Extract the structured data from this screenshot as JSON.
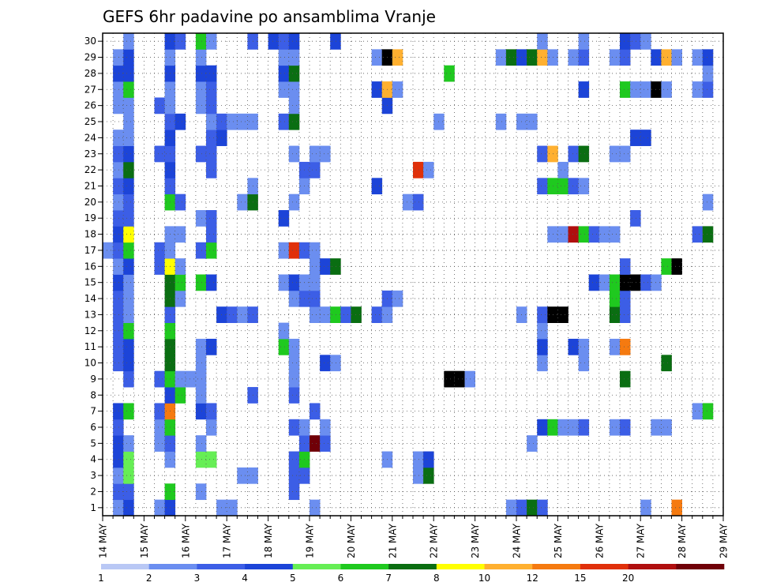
{
  "chart_data": {
    "type": "heatmap",
    "title": "GEFS 6hr padavine po ansamblima Vranje",
    "xlabel": "",
    "ylabel": "",
    "x_ticks": [
      "14 MAY",
      "15 MAY",
      "16 MAY",
      "17 MAY",
      "18 MAY",
      "19 MAY",
      "20 MAY",
      "21 MAY",
      "22 MAY",
      "23 MAY",
      "24 MAY",
      "25 MAY",
      "26 MAY",
      "27 MAY",
      "28 MAY",
      "29 MAY"
    ],
    "y_ticks": [
      "1",
      "2",
      "3",
      "4",
      "5",
      "6",
      "7",
      "8",
      "9",
      "10",
      "11",
      "12",
      "13",
      "14",
      "15",
      "16",
      "17",
      "18",
      "19",
      "20",
      "21",
      "22",
      "23",
      "24",
      "25",
      "26",
      "27",
      "28",
      "29",
      "30"
    ],
    "xlim": [
      0,
      60
    ],
    "ylim": [
      0.5,
      30.5
    ],
    "grid": true,
    "colorbar": {
      "levels": [
        1,
        2,
        3,
        4,
        5,
        6,
        7,
        8,
        10,
        12,
        15,
        20
      ],
      "labels": [
        "1",
        "2",
        "3",
        "4",
        "5",
        "6",
        "7",
        "8",
        "10",
        "12",
        "15",
        "20"
      ],
      "colors": [
        "#b9c8f5",
        "#6b8ef0",
        "#3c5ee6",
        "#1c44d8",
        "#66ee55",
        "#1fc91f",
        "#0a6e12",
        "#ffff00",
        "#ffb030",
        "#f57a10",
        "#e0300a",
        "#b00f0f",
        "#700008"
      ]
    },
    "cells": [
      [
        1,
        1,
        1
      ],
      [
        1,
        2,
        3
      ],
      [
        1,
        5,
        1
      ],
      [
        1,
        6,
        3
      ],
      [
        1,
        11,
        1
      ],
      [
        1,
        12,
        1
      ],
      [
        1,
        20,
        1
      ],
      [
        1,
        39,
        1
      ],
      [
        1,
        40,
        2
      ],
      [
        1,
        41,
        6
      ],
      [
        1,
        42,
        2
      ],
      [
        1,
        52,
        1
      ],
      [
        1,
        55,
        9
      ],
      [
        2,
        1,
        2
      ],
      [
        2,
        2,
        2
      ],
      [
        2,
        6,
        5
      ],
      [
        2,
        9,
        1
      ],
      [
        2,
        18,
        2
      ],
      [
        3,
        1,
        1
      ],
      [
        3,
        2,
        4
      ],
      [
        3,
        13,
        1
      ],
      [
        3,
        14,
        1
      ],
      [
        3,
        18,
        2
      ],
      [
        3,
        19,
        2
      ],
      [
        3,
        30,
        1
      ],
      [
        3,
        31,
        6
      ],
      [
        4,
        1,
        3
      ],
      [
        4,
        2,
        4
      ],
      [
        4,
        6,
        1
      ],
      [
        4,
        9,
        4
      ],
      [
        4,
        10,
        4
      ],
      [
        4,
        18,
        2
      ],
      [
        4,
        19,
        5
      ],
      [
        4,
        27,
        1
      ],
      [
        4,
        30,
        1
      ],
      [
        4,
        31,
        3
      ],
      [
        5,
        1,
        3
      ],
      [
        5,
        2,
        1
      ],
      [
        5,
        5,
        1
      ],
      [
        5,
        6,
        2
      ],
      [
        5,
        9,
        1
      ],
      [
        5,
        19,
        2
      ],
      [
        5,
        20,
        12
      ],
      [
        5,
        21,
        2
      ],
      [
        5,
        41,
        1
      ],
      [
        6,
        1,
        2
      ],
      [
        6,
        5,
        1
      ],
      [
        6,
        6,
        5
      ],
      [
        6,
        10,
        1
      ],
      [
        6,
        18,
        2
      ],
      [
        6,
        19,
        1
      ],
      [
        6,
        21,
        1
      ],
      [
        6,
        42,
        3
      ],
      [
        6,
        43,
        5
      ],
      [
        6,
        44,
        1
      ],
      [
        6,
        45,
        1
      ],
      [
        6,
        46,
        2
      ],
      [
        6,
        49,
        1
      ],
      [
        6,
        50,
        2
      ],
      [
        6,
        53,
        1
      ],
      [
        6,
        54,
        1
      ],
      [
        7,
        1,
        3
      ],
      [
        7,
        2,
        5
      ],
      [
        7,
        5,
        2
      ],
      [
        7,
        6,
        9
      ],
      [
        7,
        9,
        3
      ],
      [
        7,
        10,
        2
      ],
      [
        7,
        20,
        2
      ],
      [
        7,
        57,
        1
      ],
      [
        7,
        58,
        5
      ],
      [
        8,
        6,
        3
      ],
      [
        8,
        7,
        5
      ],
      [
        8,
        9,
        1
      ],
      [
        8,
        14,
        2
      ],
      [
        8,
        18,
        2
      ],
      [
        9,
        2,
        2
      ],
      [
        9,
        5,
        2
      ],
      [
        9,
        6,
        5
      ],
      [
        9,
        7,
        1
      ],
      [
        9,
        8,
        1
      ],
      [
        9,
        9,
        1
      ],
      [
        9,
        18,
        1
      ],
      [
        9,
        33,
        14
      ],
      [
        9,
        34,
        13
      ],
      [
        9,
        35,
        1
      ],
      [
        9,
        50,
        6
      ],
      [
        10,
        1,
        2
      ],
      [
        10,
        2,
        3
      ],
      [
        10,
        6,
        6
      ],
      [
        10,
        9,
        1
      ],
      [
        10,
        18,
        1
      ],
      [
        10,
        21,
        3
      ],
      [
        10,
        22,
        1
      ],
      [
        10,
        42,
        1
      ],
      [
        10,
        46,
        1
      ],
      [
        10,
        54,
        6
      ],
      [
        11,
        1,
        2
      ],
      [
        11,
        2,
        3
      ],
      [
        11,
        6,
        6
      ],
      [
        11,
        9,
        1
      ],
      [
        11,
        10,
        3
      ],
      [
        11,
        17,
        5
      ],
      [
        11,
        18,
        1
      ],
      [
        11,
        42,
        3
      ],
      [
        11,
        45,
        3
      ],
      [
        11,
        46,
        1
      ],
      [
        11,
        49,
        1
      ],
      [
        11,
        50,
        9
      ],
      [
        12,
        1,
        2
      ],
      [
        12,
        2,
        5
      ],
      [
        12,
        6,
        5
      ],
      [
        12,
        17,
        1
      ],
      [
        12,
        42,
        1
      ],
      [
        13,
        1,
        2
      ],
      [
        13,
        2,
        1
      ],
      [
        13,
        6,
        2
      ],
      [
        13,
        11,
        3
      ],
      [
        13,
        12,
        2
      ],
      [
        13,
        13,
        1
      ],
      [
        13,
        14,
        2
      ],
      [
        13,
        20,
        1
      ],
      [
        13,
        21,
        1
      ],
      [
        13,
        22,
        5
      ],
      [
        13,
        23,
        2
      ],
      [
        13,
        24,
        6
      ],
      [
        13,
        26,
        2
      ],
      [
        13,
        27,
        1
      ],
      [
        13,
        40,
        1
      ],
      [
        13,
        42,
        2
      ],
      [
        13,
        43,
        13
      ],
      [
        13,
        44,
        14
      ],
      [
        13,
        49,
        6
      ],
      [
        13,
        50,
        2
      ],
      [
        14,
        1,
        2
      ],
      [
        14,
        2,
        1
      ],
      [
        14,
        6,
        6
      ],
      [
        14,
        7,
        1
      ],
      [
        14,
        18,
        1
      ],
      [
        14,
        19,
        2
      ],
      [
        14,
        20,
        2
      ],
      [
        14,
        27,
        2
      ],
      [
        14,
        28,
        1
      ],
      [
        14,
        49,
        5
      ],
      [
        14,
        50,
        2
      ],
      [
        15,
        1,
        3
      ],
      [
        15,
        2,
        1
      ],
      [
        15,
        6,
        6
      ],
      [
        15,
        7,
        5
      ],
      [
        15,
        9,
        5
      ],
      [
        15,
        10,
        3
      ],
      [
        15,
        17,
        1
      ],
      [
        15,
        18,
        3
      ],
      [
        15,
        19,
        1
      ],
      [
        15,
        20,
        1
      ],
      [
        15,
        47,
        3
      ],
      [
        15,
        48,
        1
      ],
      [
        15,
        49,
        5
      ],
      [
        15,
        50,
        13
      ],
      [
        15,
        51,
        14
      ],
      [
        15,
        52,
        2
      ],
      [
        15,
        53,
        1
      ],
      [
        16,
        1,
        1
      ],
      [
        16,
        2,
        3
      ],
      [
        16,
        5,
        2
      ],
      [
        16,
        6,
        7
      ],
      [
        16,
        7,
        1
      ],
      [
        16,
        20,
        1
      ],
      [
        16,
        21,
        3
      ],
      [
        16,
        22,
        6
      ],
      [
        16,
        50,
        2
      ],
      [
        16,
        54,
        5
      ],
      [
        16,
        55,
        13
      ],
      [
        17,
        0,
        1
      ],
      [
        17,
        1,
        2
      ],
      [
        17,
        2,
        5
      ],
      [
        17,
        5,
        2
      ],
      [
        17,
        6,
        1
      ],
      [
        17,
        9,
        2
      ],
      [
        17,
        10,
        5
      ],
      [
        17,
        17,
        1
      ],
      [
        17,
        18,
        10
      ],
      [
        17,
        19,
        2
      ],
      [
        17,
        20,
        1
      ],
      [
        18,
        1,
        3
      ],
      [
        18,
        2,
        7
      ],
      [
        18,
        6,
        1
      ],
      [
        18,
        7,
        1
      ],
      [
        18,
        10,
        2
      ],
      [
        18,
        43,
        1
      ],
      [
        18,
        44,
        1
      ],
      [
        18,
        45,
        11
      ],
      [
        18,
        46,
        5
      ],
      [
        18,
        47,
        2
      ],
      [
        18,
        48,
        1
      ],
      [
        18,
        49,
        1
      ],
      [
        18,
        57,
        2
      ],
      [
        18,
        58,
        6
      ],
      [
        19,
        1,
        2
      ],
      [
        19,
        2,
        2
      ],
      [
        19,
        9,
        1
      ],
      [
        19,
        10,
        2
      ],
      [
        19,
        17,
        3
      ],
      [
        19,
        51,
        2
      ],
      [
        20,
        1,
        1
      ],
      [
        20,
        2,
        2
      ],
      [
        20,
        6,
        5
      ],
      [
        20,
        7,
        2
      ],
      [
        20,
        13,
        1
      ],
      [
        20,
        14,
        6
      ],
      [
        20,
        18,
        1
      ],
      [
        20,
        29,
        1
      ],
      [
        20,
        30,
        2
      ],
      [
        20,
        58,
        1
      ],
      [
        21,
        1,
        2
      ],
      [
        21,
        2,
        3
      ],
      [
        21,
        6,
        2
      ],
      [
        21,
        14,
        1
      ],
      [
        21,
        19,
        1
      ],
      [
        21,
        26,
        3
      ],
      [
        21,
        42,
        2
      ],
      [
        21,
        43,
        5
      ],
      [
        21,
        44,
        5
      ],
      [
        21,
        45,
        2
      ],
      [
        21,
        46,
        1
      ],
      [
        22,
        1,
        1
      ],
      [
        22,
        2,
        6
      ],
      [
        22,
        6,
        3
      ],
      [
        22,
        10,
        2
      ],
      [
        22,
        19,
        2
      ],
      [
        22,
        20,
        2
      ],
      [
        22,
        30,
        10
      ],
      [
        22,
        31,
        1
      ],
      [
        22,
        44,
        1
      ],
      [
        23,
        1,
        2
      ],
      [
        23,
        2,
        3
      ],
      [
        23,
        5,
        2
      ],
      [
        23,
        6,
        2
      ],
      [
        23,
        9,
        2
      ],
      [
        23,
        10,
        2
      ],
      [
        23,
        18,
        1
      ],
      [
        23,
        20,
        1
      ],
      [
        23,
        21,
        1
      ],
      [
        23,
        42,
        2
      ],
      [
        23,
        43,
        8
      ],
      [
        23,
        45,
        2
      ],
      [
        23,
        46,
        6
      ],
      [
        23,
        49,
        1
      ],
      [
        23,
        50,
        1
      ],
      [
        24,
        1,
        1
      ],
      [
        24,
        2,
        1
      ],
      [
        24,
        6,
        3
      ],
      [
        24,
        10,
        2
      ],
      [
        24,
        11,
        3
      ],
      [
        24,
        51,
        3
      ],
      [
        24,
        52,
        3
      ],
      [
        25,
        2,
        1
      ],
      [
        25,
        6,
        2
      ],
      [
        25,
        7,
        3
      ],
      [
        25,
        10,
        1
      ],
      [
        25,
        11,
        2
      ],
      [
        25,
        12,
        1
      ],
      [
        25,
        13,
        1
      ],
      [
        25,
        14,
        1
      ],
      [
        25,
        17,
        2
      ],
      [
        25,
        18,
        6
      ],
      [
        25,
        32,
        1
      ],
      [
        25,
        38,
        1
      ],
      [
        25,
        40,
        1
      ],
      [
        25,
        41,
        1
      ],
      [
        26,
        1,
        1
      ],
      [
        26,
        2,
        1
      ],
      [
        26,
        5,
        2
      ],
      [
        26,
        6,
        1
      ],
      [
        26,
        9,
        1
      ],
      [
        26,
        10,
        2
      ],
      [
        26,
        18,
        1
      ],
      [
        26,
        27,
        3
      ],
      [
        27,
        1,
        1
      ],
      [
        27,
        2,
        5
      ],
      [
        27,
        6,
        1
      ],
      [
        27,
        9,
        1
      ],
      [
        27,
        10,
        2
      ],
      [
        27,
        17,
        1
      ],
      [
        27,
        18,
        1
      ],
      [
        27,
        26,
        3
      ],
      [
        27,
        27,
        8
      ],
      [
        27,
        28,
        1
      ],
      [
        27,
        46,
        3
      ],
      [
        27,
        50,
        5
      ],
      [
        27,
        51,
        1
      ],
      [
        27,
        52,
        1
      ],
      [
        27,
        53,
        13
      ],
      [
        27,
        54,
        1
      ],
      [
        27,
        57,
        1
      ],
      [
        27,
        58,
        2
      ],
      [
        28,
        1,
        3
      ],
      [
        28,
        2,
        3
      ],
      [
        28,
        6,
        3
      ],
      [
        28,
        9,
        3
      ],
      [
        28,
        10,
        3
      ],
      [
        28,
        17,
        3
      ],
      [
        28,
        18,
        6
      ],
      [
        28,
        33,
        5
      ],
      [
        28,
        58,
        1
      ],
      [
        29,
        1,
        1
      ],
      [
        29,
        2,
        3
      ],
      [
        29,
        6,
        1
      ],
      [
        29,
        9,
        1
      ],
      [
        29,
        17,
        1
      ],
      [
        29,
        18,
        1
      ],
      [
        29,
        26,
        1
      ],
      [
        29,
        27,
        13
      ],
      [
        29,
        28,
        8
      ],
      [
        29,
        38,
        1
      ],
      [
        29,
        39,
        6
      ],
      [
        29,
        40,
        3
      ],
      [
        29,
        41,
        6
      ],
      [
        29,
        42,
        8
      ],
      [
        29,
        43,
        1
      ],
      [
        29,
        45,
        1
      ],
      [
        29,
        46,
        2
      ],
      [
        29,
        49,
        1
      ],
      [
        29,
        50,
        2
      ],
      [
        29,
        53,
        3
      ],
      [
        29,
        54,
        8
      ],
      [
        29,
        55,
        1
      ],
      [
        29,
        57,
        1
      ],
      [
        29,
        58,
        3
      ],
      [
        30,
        2,
        1
      ],
      [
        30,
        6,
        3
      ],
      [
        30,
        7,
        2
      ],
      [
        30,
        9,
        5
      ],
      [
        30,
        10,
        1
      ],
      [
        30,
        14,
        2
      ],
      [
        30,
        16,
        3
      ],
      [
        30,
        17,
        2
      ],
      [
        30,
        18,
        3
      ],
      [
        30,
        22,
        3
      ],
      [
        30,
        42,
        1
      ],
      [
        30,
        46,
        1
      ],
      [
        30,
        50,
        3
      ],
      [
        30,
        51,
        2
      ],
      [
        30,
        52,
        1
      ]
    ]
  }
}
